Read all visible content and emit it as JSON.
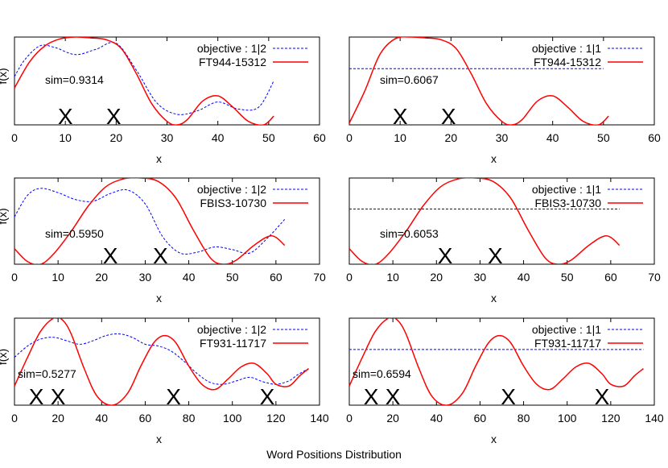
{
  "caption": "Word Positions Distribution",
  "colors": {
    "objective": "#0000ff",
    "document": "#ff0000",
    "frame": "#000000"
  },
  "chart_data": [
    {
      "type": "line",
      "xlabel": "x",
      "ylabel": "f(x)",
      "xlim": [
        0,
        60
      ],
      "xticks": [
        0,
        10,
        20,
        30,
        40,
        50,
        60
      ],
      "ylim": [
        0,
        1
      ],
      "legend_position": "top-right",
      "annotation": "sim=0.9314",
      "x_markers": [
        10,
        19.5
      ],
      "series": [
        {
          "name": "objective : 1|2",
          "style": "dashed",
          "color": "#0000ff",
          "x": [
            0,
            2,
            5,
            8,
            12,
            16,
            20,
            24,
            28,
            32,
            36,
            40,
            44,
            48,
            51
          ],
          "y": [
            0.55,
            0.74,
            0.9,
            0.88,
            0.8,
            0.86,
            0.93,
            0.62,
            0.25,
            0.12,
            0.16,
            0.26,
            0.18,
            0.2,
            0.5
          ]
        },
        {
          "name": "FT944-15312",
          "style": "solid",
          "color": "#ff0000",
          "x": [
            0,
            3,
            6,
            9,
            12,
            15,
            18,
            21,
            24,
            27,
            30,
            32,
            34,
            37,
            40,
            43,
            46,
            49,
            51
          ],
          "y": [
            0.42,
            0.72,
            0.9,
            0.98,
            1.0,
            0.99,
            0.97,
            0.87,
            0.58,
            0.24,
            0.04,
            0.0,
            0.06,
            0.27,
            0.33,
            0.2,
            0.04,
            0.0,
            0.1
          ]
        }
      ]
    },
    {
      "type": "line",
      "xlabel": "x",
      "ylabel": "",
      "xlim": [
        0,
        60
      ],
      "xticks": [
        0,
        10,
        20,
        30,
        40,
        50,
        60
      ],
      "ylim": [
        0,
        1
      ],
      "legend_position": "top-right",
      "annotation": "sim=0.6067",
      "x_markers": [
        10,
        19.5
      ],
      "series": [
        {
          "name": "objective : 1|1",
          "style": "dashed",
          "color": "#0000ff",
          "x": [
            0,
            50
          ],
          "y": [
            0.64,
            0.64
          ]
        },
        {
          "name": "FT944-15312",
          "style": "solid",
          "color": "#ff0000",
          "x": [
            0,
            3,
            6,
            9,
            12,
            15,
            18,
            21,
            24,
            27,
            30,
            32,
            34,
            37,
            40,
            43,
            46,
            49,
            51
          ],
          "y": [
            0.02,
            0.38,
            0.8,
            0.98,
            1.0,
            0.99,
            0.97,
            0.87,
            0.58,
            0.24,
            0.04,
            0.0,
            0.06,
            0.27,
            0.33,
            0.2,
            0.04,
            0.0,
            0.1
          ]
        }
      ]
    },
    {
      "type": "line",
      "xlabel": "x",
      "ylabel": "f(x)",
      "xlim": [
        0,
        70
      ],
      "xticks": [
        0,
        10,
        20,
        30,
        40,
        50,
        60,
        70
      ],
      "ylim": [
        0,
        1
      ],
      "legend_position": "top-right",
      "annotation": "sim=0.5950",
      "x_markers": [
        22,
        33.5
      ],
      "series": [
        {
          "name": "objective : 1|2",
          "style": "dashed",
          "color": "#0000ff",
          "x": [
            0,
            3,
            6,
            10,
            14,
            18,
            22,
            26,
            30,
            34,
            38,
            42,
            46,
            50,
            54,
            58,
            62
          ],
          "y": [
            0.55,
            0.8,
            0.88,
            0.83,
            0.75,
            0.73,
            0.82,
            0.86,
            0.7,
            0.32,
            0.13,
            0.14,
            0.2,
            0.17,
            0.13,
            0.3,
            0.52
          ]
        },
        {
          "name": "FBIS3-10730",
          "style": "solid",
          "color": "#ff0000",
          "x": [
            0,
            3,
            6,
            9,
            13,
            17,
            21,
            25,
            29,
            33,
            37,
            41,
            45,
            48,
            51,
            55,
            59,
            62
          ],
          "y": [
            0.18,
            0.03,
            0.0,
            0.12,
            0.38,
            0.68,
            0.9,
            0.99,
            1.0,
            0.96,
            0.77,
            0.4,
            0.07,
            0.0,
            0.05,
            0.22,
            0.33,
            0.22
          ]
        }
      ]
    },
    {
      "type": "line",
      "xlabel": "x",
      "ylabel": "",
      "xlim": [
        0,
        70
      ],
      "xticks": [
        0,
        10,
        20,
        30,
        40,
        50,
        60,
        70
      ],
      "ylim": [
        0,
        1
      ],
      "legend_position": "top-right",
      "annotation": "sim=0.6053",
      "x_markers": [
        22,
        33.5
      ],
      "series": [
        {
          "name": "objective : 1|1",
          "style": "dashed",
          "color": "#0000ff",
          "x": [
            0,
            62
          ],
          "y": [
            0.64,
            0.64
          ]
        },
        {
          "name": "FBIS3-10730",
          "style": "solid",
          "color": "#ff0000",
          "x": [
            0,
            3,
            6,
            9,
            13,
            17,
            21,
            25,
            29,
            33,
            37,
            41,
            45,
            48,
            51,
            55,
            59,
            62
          ],
          "y": [
            0.18,
            0.03,
            0.0,
            0.12,
            0.38,
            0.68,
            0.9,
            0.99,
            1.0,
            0.96,
            0.77,
            0.4,
            0.07,
            0.0,
            0.05,
            0.22,
            0.33,
            0.22
          ]
        }
      ]
    },
    {
      "type": "line",
      "xlabel": "x",
      "ylabel": "f(x)",
      "xlim": [
        0,
        140
      ],
      "xticks": [
        0,
        20,
        40,
        60,
        80,
        100,
        120,
        140
      ],
      "ylim": [
        0,
        1
      ],
      "legend_position": "top-right",
      "annotation": "sim=0.5277",
      "x_markers": [
        10,
        20,
        73,
        116
      ],
      "series": [
        {
          "name": "objective : 1|2",
          "style": "dashed",
          "color": "#0000ff",
          "x": [
            0,
            6,
            12,
            18,
            24,
            30,
            36,
            42,
            48,
            54,
            60,
            66,
            72,
            78,
            84,
            90,
            96,
            102,
            108,
            114,
            120,
            126,
            130,
            135
          ],
          "y": [
            0.55,
            0.68,
            0.76,
            0.78,
            0.74,
            0.7,
            0.74,
            0.8,
            0.82,
            0.78,
            0.7,
            0.68,
            0.62,
            0.5,
            0.36,
            0.26,
            0.24,
            0.28,
            0.32,
            0.27,
            0.24,
            0.28,
            0.35,
            0.42
          ]
        },
        {
          "name": "FT931-11717",
          "style": "solid",
          "color": "#ff0000",
          "x": [
            0,
            6,
            12,
            18,
            22,
            26,
            32,
            38,
            45,
            52,
            58,
            64,
            69,
            74,
            80,
            86,
            92,
            98,
            104,
            110,
            116,
            120,
            126,
            131,
            135
          ],
          "y": [
            0.22,
            0.55,
            0.85,
            1.0,
            0.98,
            0.82,
            0.42,
            0.1,
            0.0,
            0.14,
            0.45,
            0.72,
            0.8,
            0.72,
            0.45,
            0.24,
            0.18,
            0.3,
            0.44,
            0.48,
            0.36,
            0.24,
            0.22,
            0.34,
            0.42
          ]
        }
      ]
    },
    {
      "type": "line",
      "xlabel": "x",
      "ylabel": "",
      "xlim": [
        0,
        140
      ],
      "xticks": [
        0,
        20,
        40,
        60,
        80,
        100,
        120,
        140
      ],
      "ylim": [
        0,
        1
      ],
      "legend_position": "top-right",
      "annotation": "sim=0.6594",
      "x_markers": [
        10,
        20,
        73,
        116
      ],
      "series": [
        {
          "name": "objective : 1|1",
          "style": "dashed",
          "color": "#0000ff",
          "x": [
            0,
            135
          ],
          "y": [
            0.64,
            0.64
          ]
        },
        {
          "name": "FT931-11717",
          "style": "solid",
          "color": "#ff0000",
          "x": [
            0,
            6,
            12,
            18,
            22,
            26,
            32,
            38,
            45,
            52,
            58,
            64,
            69,
            74,
            80,
            86,
            92,
            98,
            104,
            110,
            116,
            120,
            126,
            131,
            135
          ],
          "y": [
            0.22,
            0.55,
            0.85,
            1.0,
            0.98,
            0.82,
            0.42,
            0.1,
            0.0,
            0.14,
            0.45,
            0.72,
            0.8,
            0.72,
            0.45,
            0.24,
            0.18,
            0.3,
            0.44,
            0.48,
            0.36,
            0.24,
            0.22,
            0.34,
            0.42
          ]
        }
      ]
    }
  ]
}
